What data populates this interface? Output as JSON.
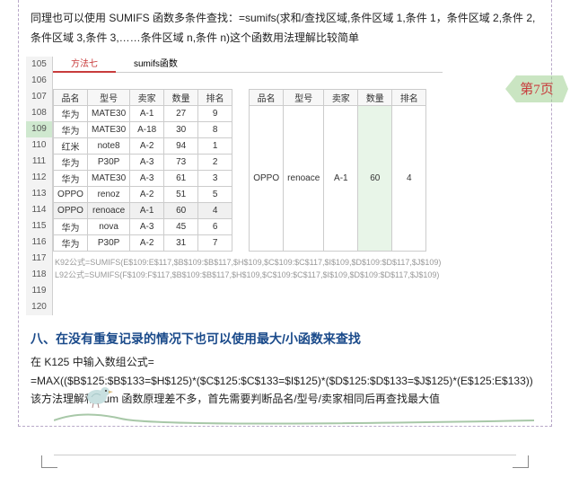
{
  "intro": "同理也可以使用 SUMIFS 函数多条件查找：=sumifs(求和/查找区域,条件区域 1,条件 1，条件区域 2,条件 2,条件区域 3,条件 3,……条件区域 n,条件 n)这个函数用法理解比较简单",
  "page_badge": "第7页",
  "row_numbers": [
    "105",
    "106",
    "107",
    "108",
    "109",
    "110",
    "111",
    "112",
    "113",
    "114",
    "115",
    "116",
    "117",
    "118",
    "119",
    "120"
  ],
  "selected_row": "109",
  "tabs": {
    "active": "方法七",
    "inactive": "sumifs函数"
  },
  "left_table": {
    "headers": [
      "品名",
      "型号",
      "卖家",
      "数量",
      "排名"
    ],
    "rows": [
      [
        "华为",
        "MATE30",
        "A-1",
        "27",
        "9"
      ],
      [
        "华为",
        "MATE30",
        "A-18",
        "30",
        "8"
      ],
      [
        "红米",
        "note8",
        "A-2",
        "94",
        "1"
      ],
      [
        "华为",
        "P30P",
        "A-3",
        "73",
        "2"
      ],
      [
        "华为",
        "MATE30",
        "A-3",
        "61",
        "3"
      ],
      [
        "OPPO",
        "renoz",
        "A-2",
        "51",
        "5"
      ],
      [
        "OPPO",
        "renoace",
        "A-1",
        "60",
        "4"
      ],
      [
        "华为",
        "nova",
        "A-3",
        "45",
        "6"
      ],
      [
        "华为",
        "P30P",
        "A-2",
        "31",
        "7"
      ]
    ]
  },
  "right_table": {
    "headers": [
      "品名",
      "型号",
      "卖家",
      "数量",
      "排名"
    ],
    "rows": [
      [
        "OPPO",
        "renoace",
        "A-1",
        "60",
        "4"
      ]
    ]
  },
  "formulas": [
    "K92公式=SUMIFS(E$109:E$117,$B$109:$B$117,$H$109,$C$109:$C$117,$I$109,$D$109:$D$117,$J$109)",
    "L92公式=SUMIFS(F$109:F$117,$B$109:$B$117,$H$109,$C$109:$C$117,$I$109,$D$109:$D$117,$J$109)"
  ],
  "section": {
    "title": "八、在没有重复记录的情况下也可以使用最大/小函数来查找",
    "line1": "在 K125 中输入数组公式=",
    "line2": "=MAX(($B$125:$B$133=$H$125)*($C$125:$C$133=$I$125)*($D$125:$D$133=$J$125)*(E$125:E$133))该方法理解和 sum 函数原理差不多，首先需要判断品名/型号/卖家相同后再查找最大值"
  },
  "colors": {
    "badge_fill": "#9fcf8f",
    "badge_text": "#c83c3c",
    "bird_body": "#c8e0e0",
    "bird_beak": "#d8b878"
  }
}
